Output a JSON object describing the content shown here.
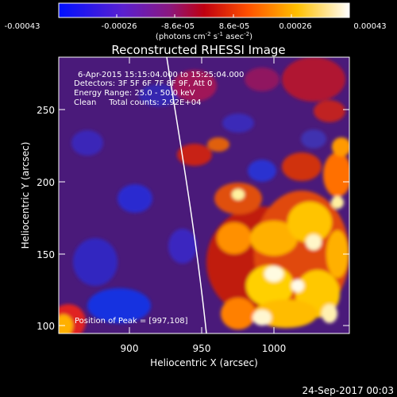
{
  "colorbar": {
    "ticks": [
      "-0.00043",
      "-0.00026",
      "-8.6e-05",
      "8.6e-05",
      "0.00026",
      "0.00043"
    ],
    "units_main": "(photons cm",
    "units_exp1": "-2",
    "units_s": " s",
    "units_exp2": "-1",
    "units_asec": " asec",
    "units_exp3": "-2",
    "units_close": ")"
  },
  "plot": {
    "title": "Reconstructed RHESSI Image",
    "xlabel": "Heliocentric X (arcsec)",
    "ylabel": "Heliocentric Y (arcsec)",
    "x_ticks": [
      "900",
      "950",
      "1000"
    ],
    "y_ticks": [
      "100",
      "150",
      "200",
      "250"
    ],
    "xlim": [
      855,
      1040
    ],
    "ylim": [
      95,
      270
    ]
  },
  "annotations": {
    "time_range": "6-Apr-2015 15:15:04.000 to 15:25:04.000",
    "detectors": "Detectors: 3F 5F 6F 7F 8F 9F, Att 0",
    "energy": "Energy Range: 25.0 - 50.0 keV",
    "clean": "Clean     Total counts: 2.92E+04",
    "peak": "Position of Peak = [997,108]"
  },
  "footer": {
    "timestamp": "24-Sep-2017 00:03"
  }
}
